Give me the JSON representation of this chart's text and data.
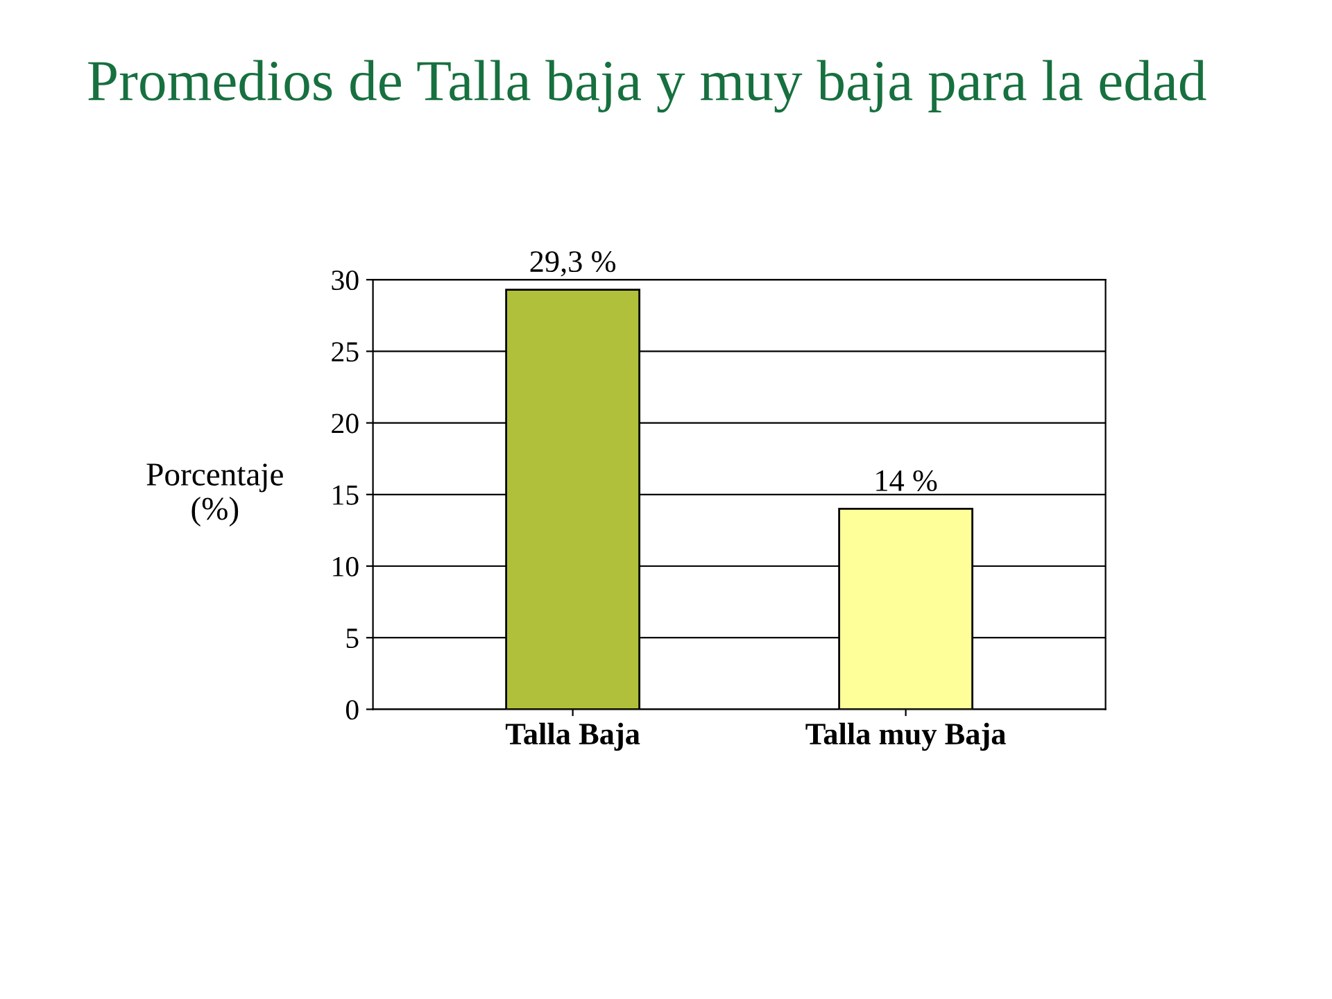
{
  "chart_data": {
    "type": "bar",
    "title": "Promedios de Talla baja y muy baja para la edad",
    "ylabel": "Porcentaje\n(%)",
    "categories": [
      "Talla Baja",
      "Talla muy Baja"
    ],
    "values": [
      29.3,
      14
    ],
    "colors": [
      "#b0c03a",
      "#ffff99"
    ],
    "value_labels": [
      "29,3 %",
      "14 %"
    ],
    "ylim": [
      0,
      30
    ],
    "yticks": [
      0,
      5,
      10,
      15,
      20,
      25,
      30
    ],
    "grid": "y"
  }
}
